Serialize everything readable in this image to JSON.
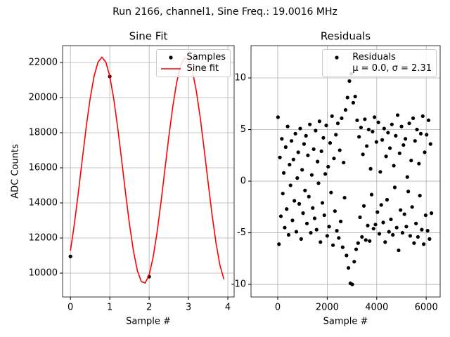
{
  "title": "Run 2166, channel1, Sine Freq.: 19.0016 MHz",
  "chart_data": [
    {
      "type": "line",
      "title": "Sine Fit",
      "xlabel": "Sample #",
      "ylabel": "ADC Counts",
      "xlim": [
        -0.2,
        4.16
      ],
      "ylim": [
        8640,
        22960
      ],
      "xticks": [
        0,
        1,
        2,
        3,
        4
      ],
      "yticks": [
        10000,
        12000,
        14000,
        16000,
        18000,
        20000,
        22000
      ],
      "grid": true,
      "legend": "upper right",
      "series": [
        {
          "name": "Samples",
          "color": "#000000",
          "style": "points",
          "x": [
            0,
            1,
            2
          ],
          "values": [
            10950,
            21200,
            9800
          ]
        },
        {
          "name": "Sine fit",
          "color": "#ff0000",
          "style": "line",
          "x": [
            0,
            0.1,
            0.2,
            0.3,
            0.4,
            0.5,
            0.6,
            0.7,
            0.8,
            0.9,
            1.0,
            1.1,
            1.2,
            1.3,
            1.4,
            1.5,
            1.6,
            1.7,
            1.8,
            1.9,
            2.0,
            2.1,
            2.2,
            2.3,
            2.4,
            2.5,
            2.6,
            2.7,
            2.8,
            2.9,
            3.0,
            3.1,
            3.2,
            3.3,
            3.4,
            3.5,
            3.6,
            3.7,
            3.8,
            3.9
          ],
          "values": [
            11273,
            12793,
            14575,
            16468,
            18307,
            19933,
            21211,
            22021,
            22300,
            22021,
            21211,
            19933,
            18307,
            16468,
            14575,
            12793,
            11273,
            10148,
            9519,
            9434,
            9904,
            10890,
            12299,
            14018,
            15895,
            17768,
            19475,
            20868,
            21830,
            22274,
            22164,
            21507,
            20365,
            18828,
            17025,
            15142,
            13313,
            11703,
            10440,
            9648
          ]
        }
      ]
    },
    {
      "type": "scatter",
      "title": "Residuals",
      "xlabel": "Sample #",
      "xlim": [
        -1080,
        6563
      ],
      "ylim": [
        -11.22,
        13.13
      ],
      "xticks": [
        0,
        2000,
        4000,
        6000
      ],
      "yticks": [
        -10,
        -5,
        0,
        5,
        10
      ],
      "grid": true,
      "legend": "upper right",
      "series": [
        {
          "name": "Residuals\nμ = 0.0, σ = 2.31",
          "color": "#000000",
          "style": "points",
          "x": [
            10,
            49,
            88,
            127,
            166,
            205,
            244,
            283,
            322,
            361,
            400,
            439,
            478,
            517,
            556,
            595,
            634,
            673,
            712,
            751,
            790,
            829,
            868,
            907,
            946,
            985,
            1024,
            1063,
            1102,
            1141,
            1180,
            1219,
            1258,
            1297,
            1336,
            1375,
            1414,
            1453,
            1492,
            1531,
            1570,
            1609,
            1648,
            1687,
            1726,
            1765,
            1804,
            1843,
            1882,
            1921,
            1960,
            1999,
            2038,
            2077,
            2116,
            2155,
            2194,
            2233,
            2272,
            2311,
            2350,
            2389,
            2428,
            2467,
            2506,
            2545,
            2584,
            2623,
            2662,
            2701,
            2740,
            2779,
            2818,
            2857,
            2896,
            2935,
            2974,
            3013,
            3052,
            3091,
            3130,
            3169,
            3208,
            3247,
            3286,
            3325,
            3364,
            3403,
            3442,
            3481,
            3520,
            3559,
            3598,
            3637,
            3676,
            3715,
            3754,
            3793,
            3832,
            3871,
            3910,
            3949,
            3988,
            4027,
            4066,
            4105,
            4144,
            4183,
            4222,
            4261,
            4300,
            4339,
            4378,
            4417,
            4456,
            4495,
            4534,
            4573,
            4612,
            4651,
            4690,
            4729,
            4768,
            4807,
            4846,
            4885,
            4924,
            4963,
            5002,
            5041,
            5080,
            5119,
            5158,
            5197,
            5236,
            5275,
            5314,
            5353,
            5392,
            5431,
            5470,
            5509,
            5548,
            5587,
            5626,
            5665,
            5704,
            5743,
            5782,
            5821,
            5860,
            5899,
            5938,
            5977,
            6016,
            6055,
            6094,
            6133,
            6172,
            6211
          ],
          "values": [
            6.2,
            -6.1,
            2.3,
            -3.4,
            4.1,
            -1.2,
            0.8,
            -4.5,
            3.3,
            -2.7,
            5.3,
            -5.2,
            1.6,
            -0.4,
            3.9,
            -3.8,
            2.1,
            -1.9,
            4.6,
            -4.9,
            0.3,
            2.8,
            -2.2,
            5.1,
            -5.6,
            1.1,
            -3.1,
            3.6,
            -0.9,
            4.4,
            -4.1,
            2.5,
            -1.5,
            5.5,
            -5.0,
            0.6,
            -2.6,
            3.1,
            -3.6,
            4.9,
            -4.7,
            1.9,
            -0.2,
            5.8,
            -5.9,
            2.9,
            -2.1,
            4.2,
            -3.3,
            0.7,
            5.4,
            -5.3,
            1.4,
            -4.4,
            3.7,
            -1.1,
            6.3,
            -6.2,
            2.2,
            -2.9,
            4.5,
            -4.8,
            5.6,
            -5.5,
            3.0,
            -3.9,
            6.1,
            -6.4,
            1.8,
            -1.6,
            6.9,
            -7.2,
            8.1,
            -8.4,
            9.7,
            -9.9,
            10.4,
            -10.0,
            7.6,
            -7.8,
            8.2,
            -6.6,
            5.9,
            -6.0,
            4.3,
            -3.5,
            5.2,
            -5.4,
            2.6,
            -2.4,
            6.0,
            -5.7,
            3.4,
            -4.3,
            5.0,
            -5.8,
            1.2,
            -1.3,
            4.8,
            -4.6,
            6.2,
            -4.2,
            3.8,
            -3.0,
            5.7,
            -5.1,
            0.9,
            -2.3,
            4.0,
            -4.0,
            5.1,
            -5.9,
            2.4,
            -1.8,
            4.7,
            -4.9,
            3.2,
            -3.7,
            5.5,
            -5.2,
            1.5,
            -0.6,
            4.4,
            -4.5,
            6.4,
            -6.7,
            2.7,
            -2.8,
            5.3,
            -5.0,
            3.5,
            -3.2,
            4.1,
            -4.4,
            0.4,
            -1.0,
            5.6,
            -5.3,
            2.0,
            -2.5,
            6.1,
            -6.0,
            3.9,
            -4.1,
            5.0,
            -5.4,
            1.7,
            -1.4,
            4.6,
            -4.7,
            6.3,
            -6.1,
            2.8,
            -3.3,
            4.5,
            -4.8,
            5.9,
            -5.6,
            3.6,
            -3.1
          ]
        }
      ]
    }
  ]
}
